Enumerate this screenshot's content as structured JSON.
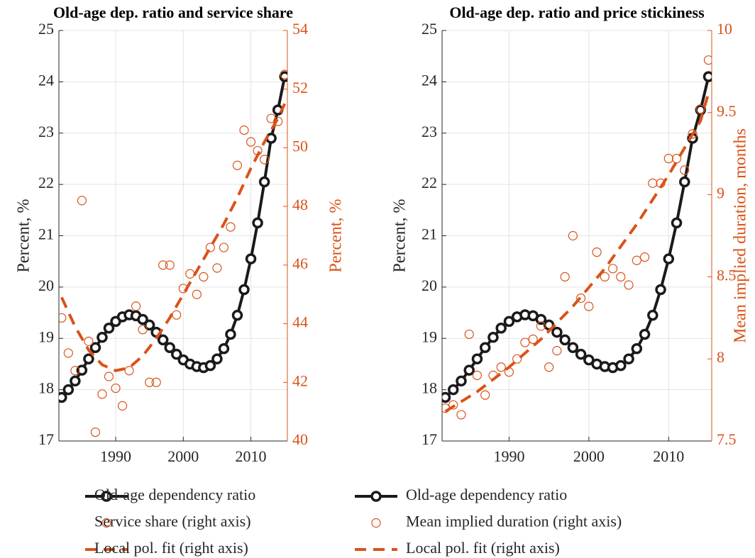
{
  "chart_data": [
    {
      "type": "line",
      "title": "Old-age dep. ratio and service share",
      "ylabel": "Percent, %",
      "y2label": "Percent, %",
      "xlim": [
        1981.6,
        2015.4
      ],
      "xticks": [
        1990,
        2000,
        2010
      ],
      "ylim": [
        17,
        25
      ],
      "yticks": [
        17,
        18,
        19,
        20,
        21,
        22,
        23,
        24,
        25
      ],
      "y2lim": [
        40,
        54
      ],
      "y2ticks": [
        40,
        42,
        44,
        46,
        48,
        50,
        52,
        54
      ],
      "y2color": "#d95319",
      "grid": true,
      "series": [
        {
          "name": "Old-age dependency ratio",
          "color": "#1a1a1a",
          "mode": "line-marker",
          "x": [
            1982,
            1983,
            1984,
            1985,
            1986,
            1987,
            1988,
            1989,
            1990,
            1991,
            1992,
            1993,
            1994,
            1995,
            1996,
            1997,
            1998,
            1999,
            2000,
            2001,
            2002,
            2003,
            2004,
            2005,
            2006,
            2007,
            2008,
            2009,
            2010,
            2011,
            2012,
            2013,
            2014,
            2015
          ],
          "values": [
            17.85,
            18.0,
            18.17,
            18.38,
            18.6,
            18.82,
            19.02,
            19.2,
            19.33,
            19.42,
            19.46,
            19.44,
            19.37,
            19.26,
            19.12,
            18.97,
            18.82,
            18.69,
            18.58,
            18.5,
            18.45,
            18.43,
            18.47,
            18.6,
            18.8,
            19.08,
            19.45,
            19.95,
            20.55,
            21.25,
            22.05,
            22.9,
            23.45,
            24.1
          ]
        },
        {
          "name": "Service share (right axis)",
          "color": "#d95319",
          "mode": "marker",
          "axis": "y2",
          "x": [
            1982,
            1983,
            1984,
            1985,
            1986,
            1987,
            1988,
            1989,
            1990,
            1991,
            1992,
            1993,
            1994,
            1995,
            1996,
            1997,
            1998,
            1999,
            2000,
            2001,
            2002,
            2003,
            2004,
            2005,
            2006,
            2007,
            2008,
            2009,
            2010,
            2011,
            2012,
            2013,
            2014,
            2015
          ],
          "values": [
            44.2,
            43.0,
            42.4,
            48.2,
            43.4,
            40.3,
            41.6,
            42.2,
            41.8,
            41.2,
            42.4,
            44.6,
            43.8,
            42.0,
            42.0,
            46.0,
            46.0,
            44.3,
            45.2,
            45.7,
            45.0,
            45.6,
            46.6,
            45.9,
            46.6,
            47.3,
            49.4,
            50.6,
            50.2,
            49.9,
            49.6,
            51.0,
            50.9,
            52.5
          ]
        },
        {
          "name": "Local pol. fit (right axis)",
          "color": "#d95319",
          "mode": "dash",
          "axis": "y2",
          "x": [
            1982,
            1984,
            1986,
            1988,
            1990,
            1992,
            1994,
            1996,
            1998,
            2000,
            2002,
            2004,
            2006,
            2008,
            2010,
            2012,
            2014,
            2015
          ],
          "values": [
            44.9,
            43.9,
            43.1,
            42.6,
            42.4,
            42.5,
            42.9,
            43.5,
            44.2,
            45.0,
            45.8,
            46.6,
            47.4,
            48.3,
            49.3,
            50.2,
            51.0,
            51.5
          ]
        }
      ]
    },
    {
      "type": "line",
      "title": "Old-age dep. ratio and price stickiness",
      "ylabel": "Percent, %",
      "y2label": "Mean implied duration, months",
      "xlim": [
        1981.6,
        2015.4
      ],
      "xticks": [
        1990,
        2000,
        2010
      ],
      "ylim": [
        17,
        25
      ],
      "yticks": [
        17,
        18,
        19,
        20,
        21,
        22,
        23,
        24,
        25
      ],
      "y2lim": [
        7.5,
        10
      ],
      "y2ticks": [
        7.5,
        8,
        8.5,
        9,
        9.5,
        10
      ],
      "y2color": "#d95319",
      "grid": true,
      "series": [
        {
          "name": "Old-age dependency ratio",
          "color": "#1a1a1a",
          "mode": "line-marker",
          "x": [
            1982,
            1983,
            1984,
            1985,
            1986,
            1987,
            1988,
            1989,
            1990,
            1991,
            1992,
            1993,
            1994,
            1995,
            1996,
            1997,
            1998,
            1999,
            2000,
            2001,
            2002,
            2003,
            2004,
            2005,
            2006,
            2007,
            2008,
            2009,
            2010,
            2011,
            2012,
            2013,
            2014,
            2015
          ],
          "values": [
            17.85,
            18.0,
            18.17,
            18.38,
            18.6,
            18.82,
            19.02,
            19.2,
            19.33,
            19.42,
            19.46,
            19.44,
            19.37,
            19.26,
            19.12,
            18.97,
            18.82,
            18.69,
            18.58,
            18.5,
            18.45,
            18.43,
            18.47,
            18.6,
            18.8,
            19.08,
            19.45,
            19.95,
            20.55,
            21.25,
            22.05,
            22.9,
            23.45,
            24.1
          ]
        },
        {
          "name": "Mean implied duration (right axis)",
          "color": "#d95319",
          "mode": "marker",
          "axis": "y2",
          "x": [
            1982,
            1983,
            1984,
            1985,
            1986,
            1987,
            1988,
            1989,
            1990,
            1991,
            1992,
            1993,
            1994,
            1995,
            1996,
            1997,
            1998,
            1999,
            2000,
            2001,
            2002,
            2003,
            2004,
            2005,
            2006,
            2007,
            2008,
            2009,
            2010,
            2011,
            2012,
            2013,
            2014,
            2015
          ],
          "values": [
            7.7,
            7.72,
            7.66,
            8.15,
            7.9,
            7.78,
            7.9,
            7.95,
            7.92,
            8.0,
            8.1,
            8.12,
            8.2,
            7.95,
            8.05,
            8.5,
            8.75,
            8.37,
            8.32,
            8.65,
            8.5,
            8.55,
            8.5,
            8.45,
            8.6,
            8.62,
            9.07,
            9.07,
            9.22,
            9.22,
            9.15,
            9.37,
            9.52,
            9.82
          ]
        },
        {
          "name": "Local pol. fit (right axis)",
          "color": "#d95319",
          "mode": "dash",
          "axis": "y2",
          "x": [
            1982,
            1986,
            1990,
            1994,
            1998,
            2002,
            2006,
            2010,
            2014,
            2015
          ],
          "values": [
            7.68,
            7.8,
            7.95,
            8.12,
            8.32,
            8.55,
            8.82,
            9.12,
            9.45,
            9.62
          ]
        }
      ]
    }
  ]
}
